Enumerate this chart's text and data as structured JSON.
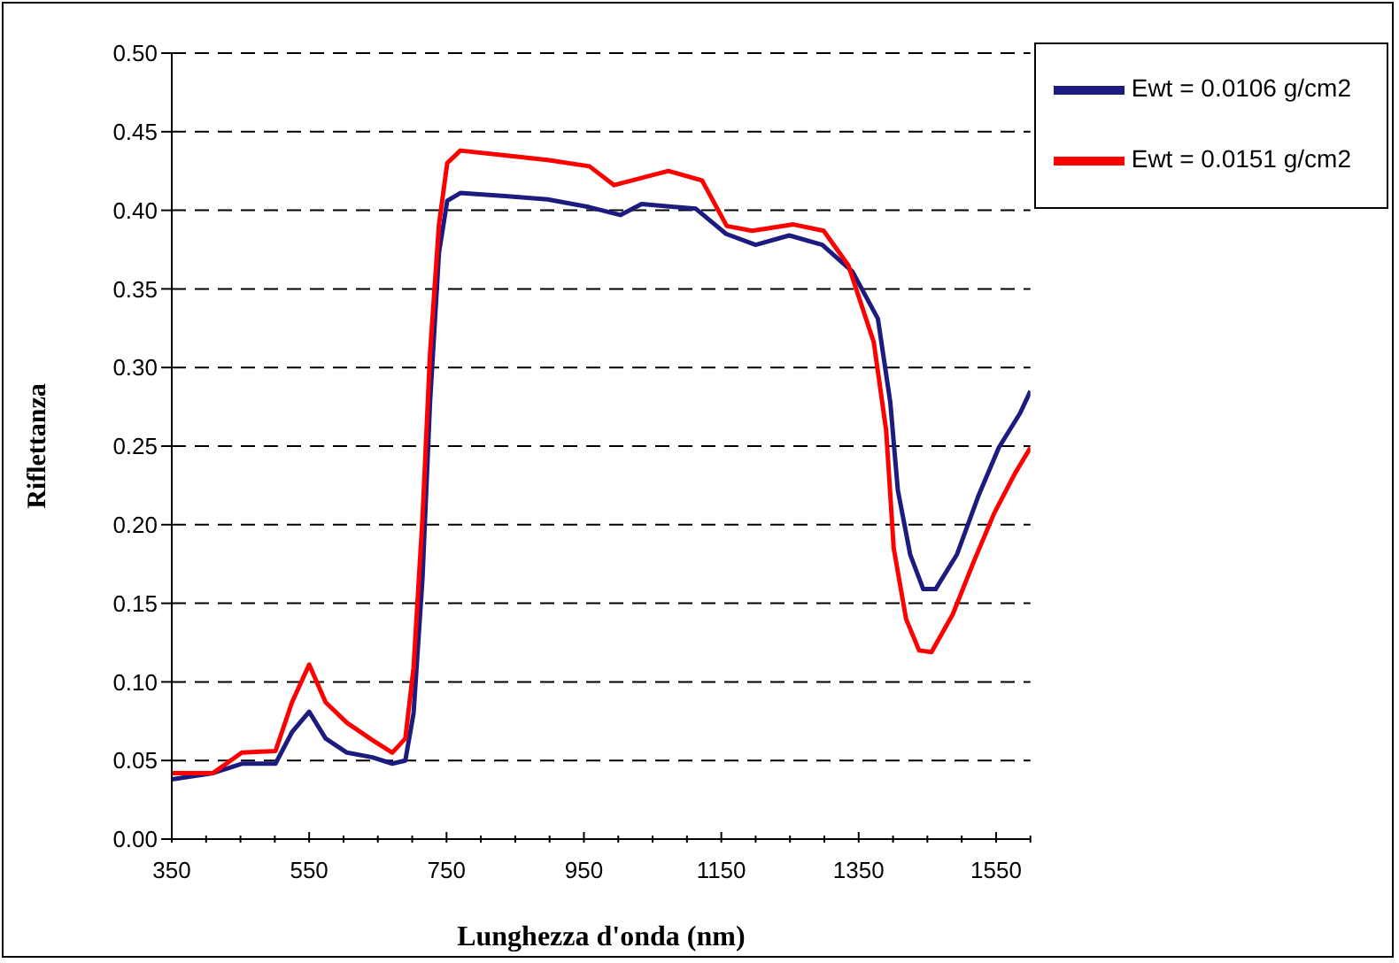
{
  "chart_data": {
    "type": "line",
    "xlabel": "Lunghezza d'onda (nm)",
    "ylabel": "Riflettanza",
    "xlim": [
      350,
      1600
    ],
    "xticks": [
      350,
      {
        "value": 400,
        "label": null
      },
      {
        "value": 450,
        "label": null
      },
      {
        "value": 500,
        "label": null
      },
      550,
      {
        "value": 600,
        "label": null
      },
      {
        "value": 650,
        "label": null
      },
      {
        "value": 700,
        "label": null
      },
      750,
      {
        "value": 800,
        "label": null
      },
      {
        "value": 850,
        "label": null
      },
      {
        "value": 900,
        "label": null
      },
      950,
      {
        "value": 1000,
        "label": null
      },
      {
        "value": 1050,
        "label": null
      },
      {
        "value": 1100,
        "label": null
      },
      1150,
      {
        "value": 1200,
        "label": null
      },
      {
        "value": 1250,
        "label": null
      },
      {
        "value": 1300,
        "label": null
      },
      1350,
      {
        "value": 1400,
        "label": null
      },
      {
        "value": 1450,
        "label": null
      },
      {
        "value": 1500,
        "label": null
      },
      1550,
      {
        "value": 1600,
        "label": null
      }
    ],
    "ylim": [
      0,
      0.5
    ],
    "yticks": [
      {
        "value": 0,
        "label": "0.00"
      },
      {
        "value": 0.05,
        "label": "0.05"
      },
      {
        "value": 0.1,
        "label": "0.10"
      },
      {
        "value": 0.15,
        "label": "0.15"
      },
      {
        "value": 0.2,
        "label": "0.20"
      },
      {
        "value": 0.25,
        "label": "0.25"
      },
      {
        "value": 0.3,
        "label": "0.30"
      },
      {
        "value": 0.35,
        "label": "0.35"
      },
      {
        "value": 0.4,
        "label": "0.40"
      },
      {
        "value": 0.45,
        "label": "0.45"
      },
      {
        "value": 0.5,
        "label": "0.50"
      }
    ],
    "grid": "y",
    "legend": "top right",
    "marker": "none",
    "line_style": "solid",
    "series": [
      {
        "name": "Ewt = 0.0106 g/cm2",
        "color": "#1c1c80",
        "x": [
          350,
          410,
          452,
          501,
          525,
          550,
          574,
          605,
          642,
          671,
          690,
          702,
          715,
          726,
          739,
          751,
          770,
          835,
          897,
          958,
          1003,
          1034,
          1113,
          1157,
          1200,
          1249,
          1297,
          1341,
          1378,
          1396,
          1407,
          1425,
          1444,
          1462,
          1493,
          1524,
          1554,
          1585,
          1600
        ],
        "values": [
          0.038,
          0.042,
          0.048,
          0.048,
          0.068,
          0.081,
          0.064,
          0.055,
          0.052,
          0.048,
          0.05,
          0.08,
          0.166,
          0.278,
          0.373,
          0.406,
          0.411,
          0.409,
          0.407,
          0.402,
          0.397,
          0.404,
          0.401,
          0.385,
          0.378,
          0.384,
          0.378,
          0.361,
          0.331,
          0.278,
          0.222,
          0.181,
          0.159,
          0.159,
          0.181,
          0.218,
          0.249,
          0.271,
          0.285
        ]
      },
      {
        "name": "Ewt = 0.0151 g/cm2",
        "color": "#ff0000",
        "x": [
          350,
          410,
          452,
          501,
          525,
          550,
          574,
          605,
          642,
          671,
          690,
          702,
          715,
          726,
          739,
          751,
          770,
          835,
          897,
          958,
          994,
          1073,
          1122,
          1158,
          1195,
          1255,
          1299,
          1335,
          1372,
          1390,
          1401,
          1419,
          1438,
          1456,
          1487,
          1518,
          1547,
          1578,
          1600
        ],
        "values": [
          0.042,
          0.042,
          0.055,
          0.056,
          0.087,
          0.111,
          0.087,
          0.074,
          0.063,
          0.055,
          0.064,
          0.109,
          0.204,
          0.309,
          0.391,
          0.43,
          0.438,
          0.435,
          0.432,
          0.428,
          0.416,
          0.425,
          0.419,
          0.39,
          0.387,
          0.391,
          0.387,
          0.365,
          0.316,
          0.26,
          0.185,
          0.14,
          0.12,
          0.119,
          0.143,
          0.177,
          0.207,
          0.233,
          0.249
        ]
      }
    ]
  }
}
